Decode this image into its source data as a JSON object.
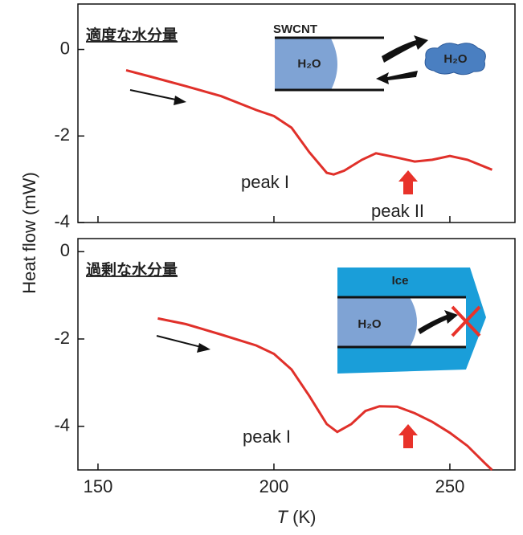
{
  "chart_data": [
    {
      "type": "line",
      "title": "適度な水分量",
      "ylabel": "Heat flow (mW)",
      "color": "#e0302a",
      "x": [
        158,
        165,
        175,
        185,
        195,
        200,
        205,
        210,
        215,
        217,
        220,
        225,
        229,
        235,
        240,
        245,
        250,
        255,
        262
      ],
      "values": [
        -0.48,
        -0.63,
        -0.85,
        -1.08,
        -1.4,
        -1.54,
        -1.81,
        -2.37,
        -2.85,
        -2.89,
        -2.8,
        -2.55,
        -2.4,
        -2.5,
        -2.59,
        -2.55,
        -2.46,
        -2.55,
        -2.78
      ],
      "xlim": [
        144.3,
        268.5
      ],
      "ylim": [
        -4,
        1.05
      ],
      "yticks": [
        0,
        -2,
        -4
      ],
      "annotations": [
        "peak I",
        "peak II"
      ],
      "inset_labels": [
        "SWCNT",
        "H₂O",
        "H₂O"
      ]
    },
    {
      "type": "line",
      "title": "過剰な水分量",
      "xlabel_symbol": "T",
      "xlabel_unit": "(K)",
      "color": "#e0302a",
      "x": [
        167,
        175,
        185,
        195,
        200,
        205,
        210,
        215,
        218,
        222,
        226,
        230,
        235,
        240,
        245,
        250,
        255,
        260,
        262
      ],
      "values": [
        -1.53,
        -1.66,
        -1.9,
        -2.15,
        -2.34,
        -2.7,
        -3.3,
        -3.95,
        -4.13,
        -3.95,
        -3.65,
        -3.54,
        -3.55,
        -3.7,
        -3.9,
        -4.15,
        -4.45,
        -4.85,
        -5.0
      ],
      "xlim": [
        144.3,
        268.5
      ],
      "ylim": [
        -5,
        0.3
      ],
      "xticks": [
        150,
        200,
        250
      ],
      "yticks": [
        0,
        -2,
        -4
      ],
      "annotations": [
        "peak I"
      ],
      "inset_labels": [
        "Ice",
        "H₂O"
      ]
    }
  ]
}
